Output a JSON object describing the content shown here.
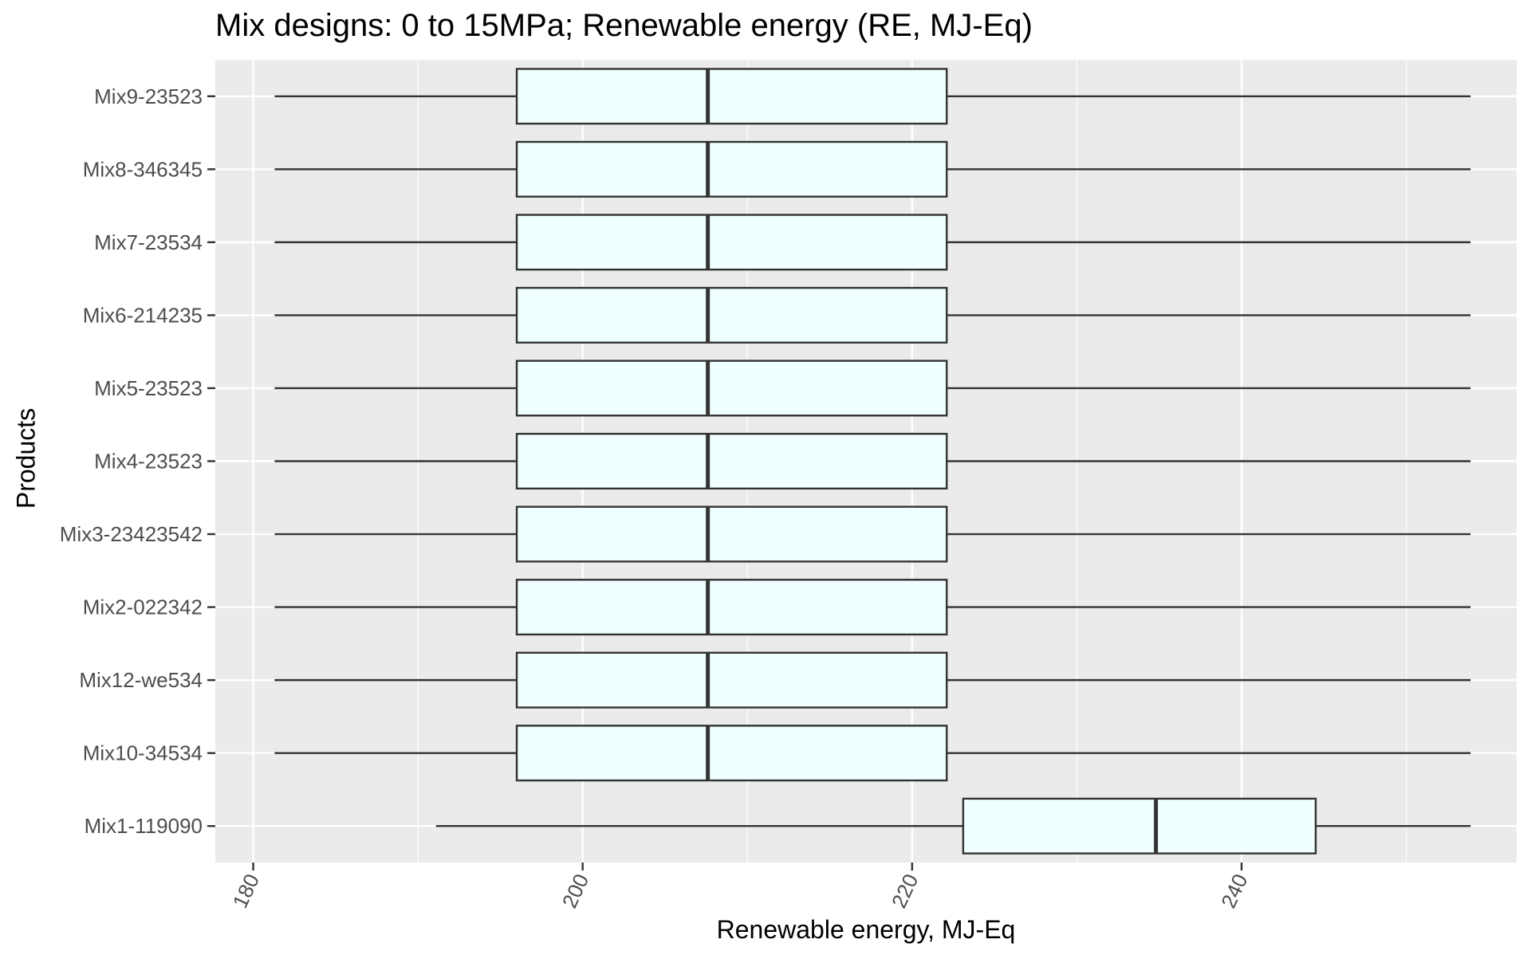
{
  "chart_data": {
    "type": "boxplot",
    "title": "Mix designs: 0 to 15MPa; Renewable energy (RE, MJ-Eq)",
    "xlabel": "Renewable energy, MJ-Eq",
    "ylabel": "Products",
    "xlim": [
      177.7,
      256.7
    ],
    "xticks": [
      180,
      200,
      220,
      240
    ],
    "grid": true,
    "colors": {
      "panel": "#ebebeb",
      "box_fill": "#f0ffff",
      "box_stroke": "#333333",
      "grid": "#ffffff",
      "tick_label": "#4d4d4d"
    },
    "categories": [
      "Mix9-23523",
      "Mix8-346345",
      "Mix7-23534",
      "Mix6-214235",
      "Mix5-23523",
      "Mix4-23523",
      "Mix3-23423542",
      "Mix2-022342",
      "Mix12-we534",
      "Mix10-34534",
      "Mix1-119090"
    ],
    "series": [
      {
        "category": "Mix9-23523",
        "min": 181.3,
        "q1": 196.0,
        "median": 207.6,
        "q3": 222.1,
        "max": 253.9
      },
      {
        "category": "Mix8-346345",
        "min": 181.3,
        "q1": 196.0,
        "median": 207.6,
        "q3": 222.1,
        "max": 253.9
      },
      {
        "category": "Mix7-23534",
        "min": 181.3,
        "q1": 196.0,
        "median": 207.6,
        "q3": 222.1,
        "max": 253.9
      },
      {
        "category": "Mix6-214235",
        "min": 181.3,
        "q1": 196.0,
        "median": 207.6,
        "q3": 222.1,
        "max": 253.9
      },
      {
        "category": "Mix5-23523",
        "min": 181.3,
        "q1": 196.0,
        "median": 207.6,
        "q3": 222.1,
        "max": 253.9
      },
      {
        "category": "Mix4-23523",
        "min": 181.3,
        "q1": 196.0,
        "median": 207.6,
        "q3": 222.1,
        "max": 253.9
      },
      {
        "category": "Mix3-23423542",
        "min": 181.3,
        "q1": 196.0,
        "median": 207.6,
        "q3": 222.1,
        "max": 253.9
      },
      {
        "category": "Mix2-022342",
        "min": 181.3,
        "q1": 196.0,
        "median": 207.6,
        "q3": 222.1,
        "max": 253.9
      },
      {
        "category": "Mix12-we534",
        "min": 181.3,
        "q1": 196.0,
        "median": 207.6,
        "q3": 222.1,
        "max": 253.9
      },
      {
        "category": "Mix10-34534",
        "min": 181.3,
        "q1": 196.0,
        "median": 207.6,
        "q3": 222.1,
        "max": 253.9
      },
      {
        "category": "Mix1-119090",
        "min": 191.1,
        "q1": 223.1,
        "median": 234.8,
        "q3": 244.5,
        "max": 253.9
      }
    ]
  }
}
